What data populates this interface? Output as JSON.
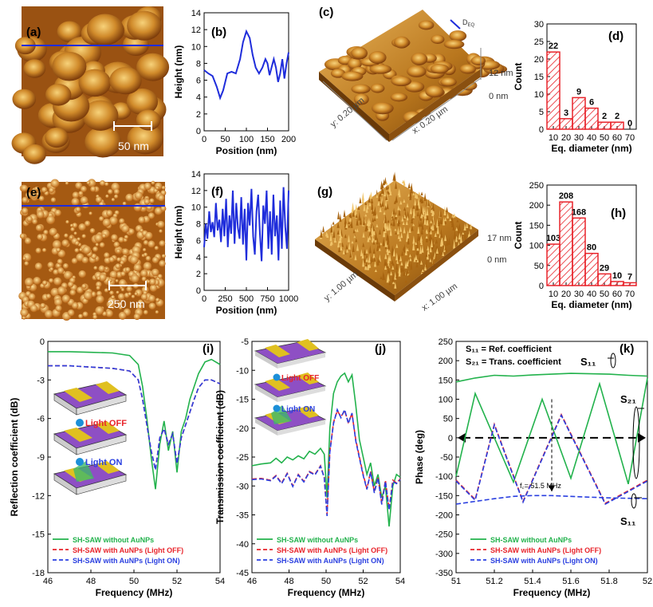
{
  "figure": {
    "panel_letters": [
      "(a)",
      "(b)",
      "(c)",
      "(d)",
      "(e)",
      "(f)",
      "(g)",
      "(h)",
      "(i)",
      "(j)",
      "(k)"
    ],
    "afm": {
      "a_scalebar": "50 nm",
      "e_scalebar": "250 nm",
      "c_axes": {
        "y": "y: 0.20 µm",
        "x": "x: 0.20 µm",
        "z_top": "12 nm",
        "z_bottom": "0 nm",
        "deq": "D",
        "deq_sub": "EQ"
      },
      "g_axes": {
        "y": "y: 1.00 µm",
        "x": "x: 1.00 µm",
        "z_top": "17 nm",
        "z_bottom": "0 nm"
      }
    },
    "insets": {
      "light_off": "Light OFF",
      "light_on": "Light ON"
    },
    "k_annotations": {
      "s11_def": "S₁₁ = Ref. coefficient",
      "s21_def": "S₂₁ = Trans. coefficient",
      "s11_top": "S₁₁",
      "s21": "S₂₁",
      "s11_bottom": "S₁₁",
      "fc": "f꜀= 51.5 MHz"
    },
    "legend": {
      "green": "SH-SAW without AuNPs",
      "red": "SH-SAW with AuNPs (Light OFF)",
      "blue": "SH-SAW with AuNPs (Light ON)"
    },
    "colors": {
      "green": "#22b24c",
      "red": "#e8232a",
      "blue": "#2a3fe0",
      "bar": "#e8232a",
      "line_profile": "#1f2ddb"
    }
  },
  "chart_data": [
    {
      "id": "b",
      "type": "line",
      "xlabel": "Position (nm)",
      "ylabel": "Height (nm)",
      "xlim": [
        0,
        200
      ],
      "ylim": [
        0,
        14
      ],
      "xticks": [
        0,
        50,
        100,
        150,
        200
      ],
      "yticks": [
        0,
        2,
        4,
        6,
        8,
        10,
        12,
        14
      ],
      "x": [
        0,
        10,
        20,
        30,
        38,
        45,
        55,
        65,
        75,
        85,
        92,
        100,
        108,
        115,
        122,
        130,
        138,
        145,
        150,
        155,
        160,
        165,
        170,
        175,
        180,
        185,
        190,
        195,
        200
      ],
      "y": [
        7.2,
        6.8,
        6.5,
        5.2,
        3.9,
        4.8,
        6.8,
        7.0,
        6.8,
        8.5,
        10.5,
        11.8,
        11.0,
        9.0,
        7.5,
        6.8,
        7.5,
        8.5,
        8.0,
        6.6,
        7.6,
        8.5,
        7.5,
        5.8,
        6.8,
        8.5,
        6.2,
        8.0,
        9.3
      ]
    },
    {
      "id": "d",
      "type": "bar",
      "xlabel": "Eq. diameter (nm)",
      "ylabel": "Count",
      "xlim": [
        5,
        75
      ],
      "ylim": [
        0,
        30
      ],
      "xticks": [
        10,
        20,
        30,
        40,
        50,
        60,
        70
      ],
      "yticks": [
        0,
        5,
        10,
        15,
        20,
        25,
        30
      ],
      "bin_left": [
        5,
        15,
        25,
        35,
        45,
        55,
        65
      ],
      "bin_width": 10,
      "values": [
        22,
        3,
        9,
        6,
        2,
        2,
        0
      ]
    },
    {
      "id": "f",
      "type": "line",
      "xlabel": "Position (nm)",
      "ylabel": "Height (nm)",
      "xlim": [
        0,
        1000
      ],
      "ylim": [
        0,
        14
      ],
      "xticks": [
        0,
        250,
        500,
        750,
        1000
      ],
      "yticks": [
        0,
        2,
        4,
        6,
        8,
        10,
        12,
        14
      ],
      "x": [
        0,
        20,
        40,
        60,
        80,
        100,
        120,
        140,
        160,
        180,
        200,
        220,
        240,
        260,
        280,
        300,
        320,
        340,
        360,
        380,
        400,
        420,
        440,
        460,
        480,
        500,
        520,
        540,
        560,
        580,
        600,
        620,
        640,
        660,
        680,
        700,
        720,
        740,
        760,
        780,
        800,
        820,
        840,
        860,
        880,
        900,
        920,
        940,
        960,
        980,
        1000
      ],
      "y": [
        5.2,
        8.0,
        6.2,
        9.5,
        7.0,
        8.2,
        6.4,
        10.5,
        7.2,
        8.5,
        5.8,
        9.8,
        6.5,
        11.0,
        5.2,
        9.0,
        6.8,
        12.0,
        5.6,
        10.5,
        7.5,
        6.2,
        11.2,
        5.5,
        9.8,
        3.6,
        10.5,
        7.8,
        12.2,
        6.5,
        4.3,
        9.5,
        11.5,
        6.8,
        3.5,
        10.2,
        8.0,
        12.0,
        5.0,
        9.5,
        4.3,
        11.5,
        6.5,
        9.0,
        3.6,
        10.8,
        5.0,
        12.4,
        7.6,
        5.0,
        12.0
      ]
    },
    {
      "id": "h",
      "type": "bar",
      "xlabel": "Eq. diameter (nm)",
      "ylabel": "Count",
      "xlim": [
        5,
        75
      ],
      "ylim": [
        0,
        250
      ],
      "xticks": [
        10,
        20,
        30,
        40,
        50,
        60,
        70
      ],
      "yticks": [
        0,
        50,
        100,
        150,
        200,
        250
      ],
      "bin_left": [
        5,
        15,
        25,
        35,
        45,
        55,
        65
      ],
      "bin_width": 10,
      "values": [
        103,
        208,
        168,
        80,
        29,
        10,
        7
      ]
    },
    {
      "id": "i",
      "type": "line",
      "xlabel": "Frequency (MHz)",
      "ylabel": "Reflection coefficient (dB)",
      "xlim": [
        46,
        54
      ],
      "ylim": [
        -18,
        0
      ],
      "xticks": [
        46,
        48,
        50,
        52,
        54
      ],
      "yticks": [
        0,
        -3,
        -6,
        -9,
        -12,
        -15,
        -18
      ],
      "series": [
        {
          "color": "green",
          "style": "solid",
          "x": [
            46,
            47,
            48,
            49,
            49.8,
            50.2,
            50.4,
            50.6,
            50.8,
            51.0,
            51.2,
            51.4,
            51.6,
            51.8,
            52.0,
            52.2,
            52.4,
            52.6,
            52.8,
            53.0,
            53.3,
            53.6,
            54
          ],
          "y": [
            -0.8,
            -0.8,
            -0.85,
            -0.9,
            -1.1,
            -1.8,
            -3.5,
            -6.0,
            -9.0,
            -11.5,
            -8.0,
            -6.2,
            -8.5,
            -7.0,
            -10.2,
            -7.0,
            -6.0,
            -4.5,
            -3.5,
            -2.5,
            -1.6,
            -1.4,
            -1.8
          ]
        },
        {
          "color": "red",
          "style": "dash",
          "x": [
            46,
            47,
            48,
            49,
            49.8,
            50.2,
            50.4,
            50.6,
            50.8,
            51.0,
            51.2,
            51.4,
            51.6,
            51.8,
            52.0,
            52.2,
            52.4,
            52.6,
            52.8,
            53.0,
            53.3,
            53.6,
            54
          ],
          "y": [
            -1.9,
            -1.9,
            -2.0,
            -2.1,
            -2.3,
            -3.0,
            -4.5,
            -6.5,
            -8.5,
            -10.0,
            -7.5,
            -6.8,
            -8.0,
            -7.2,
            -9.5,
            -7.5,
            -6.5,
            -5.5,
            -4.5,
            -3.6,
            -3.0,
            -3.0,
            -3.3
          ]
        },
        {
          "color": "blue",
          "style": "dash",
          "x": [
            46,
            47,
            48,
            49,
            49.8,
            50.2,
            50.4,
            50.6,
            50.8,
            51.0,
            51.2,
            51.4,
            51.6,
            51.8,
            52.0,
            52.2,
            52.4,
            52.6,
            52.8,
            53.0,
            53.3,
            53.6,
            54
          ],
          "y": [
            -1.9,
            -1.9,
            -2.0,
            -2.1,
            -2.3,
            -3.0,
            -4.5,
            -6.5,
            -8.5,
            -10.0,
            -7.5,
            -6.8,
            -8.0,
            -7.2,
            -9.5,
            -7.5,
            -6.5,
            -5.5,
            -4.5,
            -3.6,
            -3.0,
            -3.0,
            -3.3
          ]
        }
      ]
    },
    {
      "id": "j",
      "type": "line",
      "xlabel": "Frequency (MHz)",
      "ylabel": "Transmission coefficient (dB)",
      "xlim": [
        46,
        54
      ],
      "ylim": [
        -45,
        -5
      ],
      "xticks": [
        46,
        48,
        50,
        52,
        54
      ],
      "yticks": [
        -5,
        -10,
        -15,
        -20,
        -25,
        -30,
        -35,
        -40,
        -45
      ],
      "series": [
        {
          "color": "green",
          "style": "solid",
          "x": [
            46,
            46.5,
            47,
            47.3,
            47.6,
            47.9,
            48.2,
            48.5,
            48.8,
            49.1,
            49.4,
            49.7,
            49.9,
            50.05,
            50.2,
            50.4,
            50.6,
            50.8,
            51.0,
            51.2,
            51.4,
            51.6,
            51.8,
            52.0,
            52.2,
            52.4,
            52.6,
            52.8,
            53.0,
            53.2,
            53.4,
            53.6,
            53.8,
            54
          ],
          "y": [
            -26.5,
            -26.2,
            -26.0,
            -25.2,
            -26.0,
            -25.0,
            -25.5,
            -24.8,
            -25.3,
            -24.0,
            -24.5,
            -23.5,
            -24.5,
            -32.0,
            -20.0,
            -14.0,
            -12.0,
            -11.0,
            -10.5,
            -12.0,
            -10.8,
            -16.0,
            -22.0,
            -25.0,
            -28.0,
            -26.0,
            -30.0,
            -28.0,
            -32.0,
            -30.0,
            -37.0,
            -30.0,
            -28.0,
            -28.5
          ]
        },
        {
          "color": "red",
          "style": "dash",
          "x": [
            46,
            46.5,
            47,
            47.3,
            47.6,
            47.9,
            48.2,
            48.5,
            48.8,
            49.1,
            49.4,
            49.7,
            49.9,
            50.05,
            50.2,
            50.4,
            50.6,
            50.8,
            51.0,
            51.2,
            51.4,
            51.6,
            51.8,
            52.0,
            52.2,
            52.4,
            52.6,
            52.8,
            53.0,
            53.2,
            53.4,
            53.6,
            53.8,
            54
          ],
          "y": [
            -28.8,
            -28.7,
            -29.0,
            -28.2,
            -29.5,
            -27.8,
            -30.0,
            -28.0,
            -29.2,
            -27.5,
            -28.0,
            -26.5,
            -28.5,
            -35.0,
            -24.0,
            -19.0,
            -17.0,
            -18.0,
            -17.0,
            -19.0,
            -17.5,
            -22.0,
            -25.0,
            -28.0,
            -30.5,
            -27.5,
            -31.0,
            -28.5,
            -33.0,
            -29.0,
            -34.0,
            -29.0,
            -29.5,
            -28.8
          ]
        },
        {
          "color": "blue",
          "style": "dash",
          "x": [
            46,
            46.5,
            47,
            47.3,
            47.6,
            47.9,
            48.2,
            48.5,
            48.8,
            49.1,
            49.4,
            49.7,
            49.9,
            50.05,
            50.2,
            50.4,
            50.6,
            50.8,
            51.0,
            51.2,
            51.4,
            51.6,
            51.8,
            52.0,
            52.2,
            52.4,
            52.6,
            52.8,
            53.0,
            53.2,
            53.4,
            53.6,
            53.8,
            54
          ],
          "y": [
            -28.9,
            -28.8,
            -29.1,
            -28.3,
            -29.6,
            -27.9,
            -30.1,
            -28.1,
            -29.3,
            -27.6,
            -28.1,
            -26.6,
            -28.6,
            -35.2,
            -24.2,
            -19.2,
            -16.8,
            -18.2,
            -16.8,
            -19.2,
            -17.4,
            -22.2,
            -25.2,
            -28.2,
            -30.6,
            -27.6,
            -31.2,
            -28.6,
            -33.2,
            -29.2,
            -34.2,
            -29.2,
            -29.6,
            -28.9
          ]
        }
      ]
    },
    {
      "id": "k",
      "type": "line",
      "xlabel": "Frequency (MHz)",
      "ylabel": "Phase (deg)",
      "xlim": [
        51,
        52
      ],
      "ylim": [
        -350,
        250
      ],
      "xticks": [
        51,
        51.2,
        51.4,
        51.6,
        51.8,
        52
      ],
      "yticks": [
        250,
        200,
        150,
        100,
        50,
        0,
        -50,
        -100,
        -150,
        -200,
        -250,
        -300,
        -350
      ],
      "series": [
        {
          "color": "green",
          "style": "solid",
          "note": "phase S21",
          "x": [
            51,
            51.1,
            51.3,
            51.45,
            51.6,
            51.75,
            51.9,
            52
          ],
          "y": [
            -100,
            115,
            -115,
            100,
            -105,
            140,
            -120,
            155
          ]
        },
        {
          "color": "green",
          "style": "solid",
          "note": "phase S11",
          "x": [
            51,
            51.1,
            51.2,
            51.3,
            51.4,
            51.5,
            51.6,
            51.7,
            51.8,
            51.9,
            52
          ],
          "y": [
            145,
            155,
            162,
            160,
            163,
            165,
            167,
            166,
            165,
            162,
            160
          ]
        },
        {
          "color": "red",
          "style": "dash",
          "note": "phase S21",
          "x": [
            51,
            51.1,
            51.2,
            51.35,
            51.55,
            51.78,
            52
          ],
          "y": [
            -110,
            -160,
            35,
            -165,
            60,
            -170,
            -110
          ]
        },
        {
          "color": "blue",
          "style": "dash",
          "note": "phase S21",
          "x": [
            51,
            51.1,
            51.2,
            51.35,
            51.55,
            51.78,
            52
          ],
          "y": [
            -112,
            -162,
            33,
            -167,
            58,
            -172,
            -112
          ]
        },
        {
          "color": "blue",
          "style": "dash",
          "note": "phase S11",
          "x": [
            51,
            51.1,
            51.2,
            51.3,
            51.4,
            51.5,
            51.6,
            51.7,
            51.8,
            51.9,
            52
          ],
          "y": [
            -172,
            -165,
            -158,
            -152,
            -150,
            -150,
            -152,
            -154,
            -156,
            -157,
            -158
          ]
        }
      ]
    }
  ]
}
